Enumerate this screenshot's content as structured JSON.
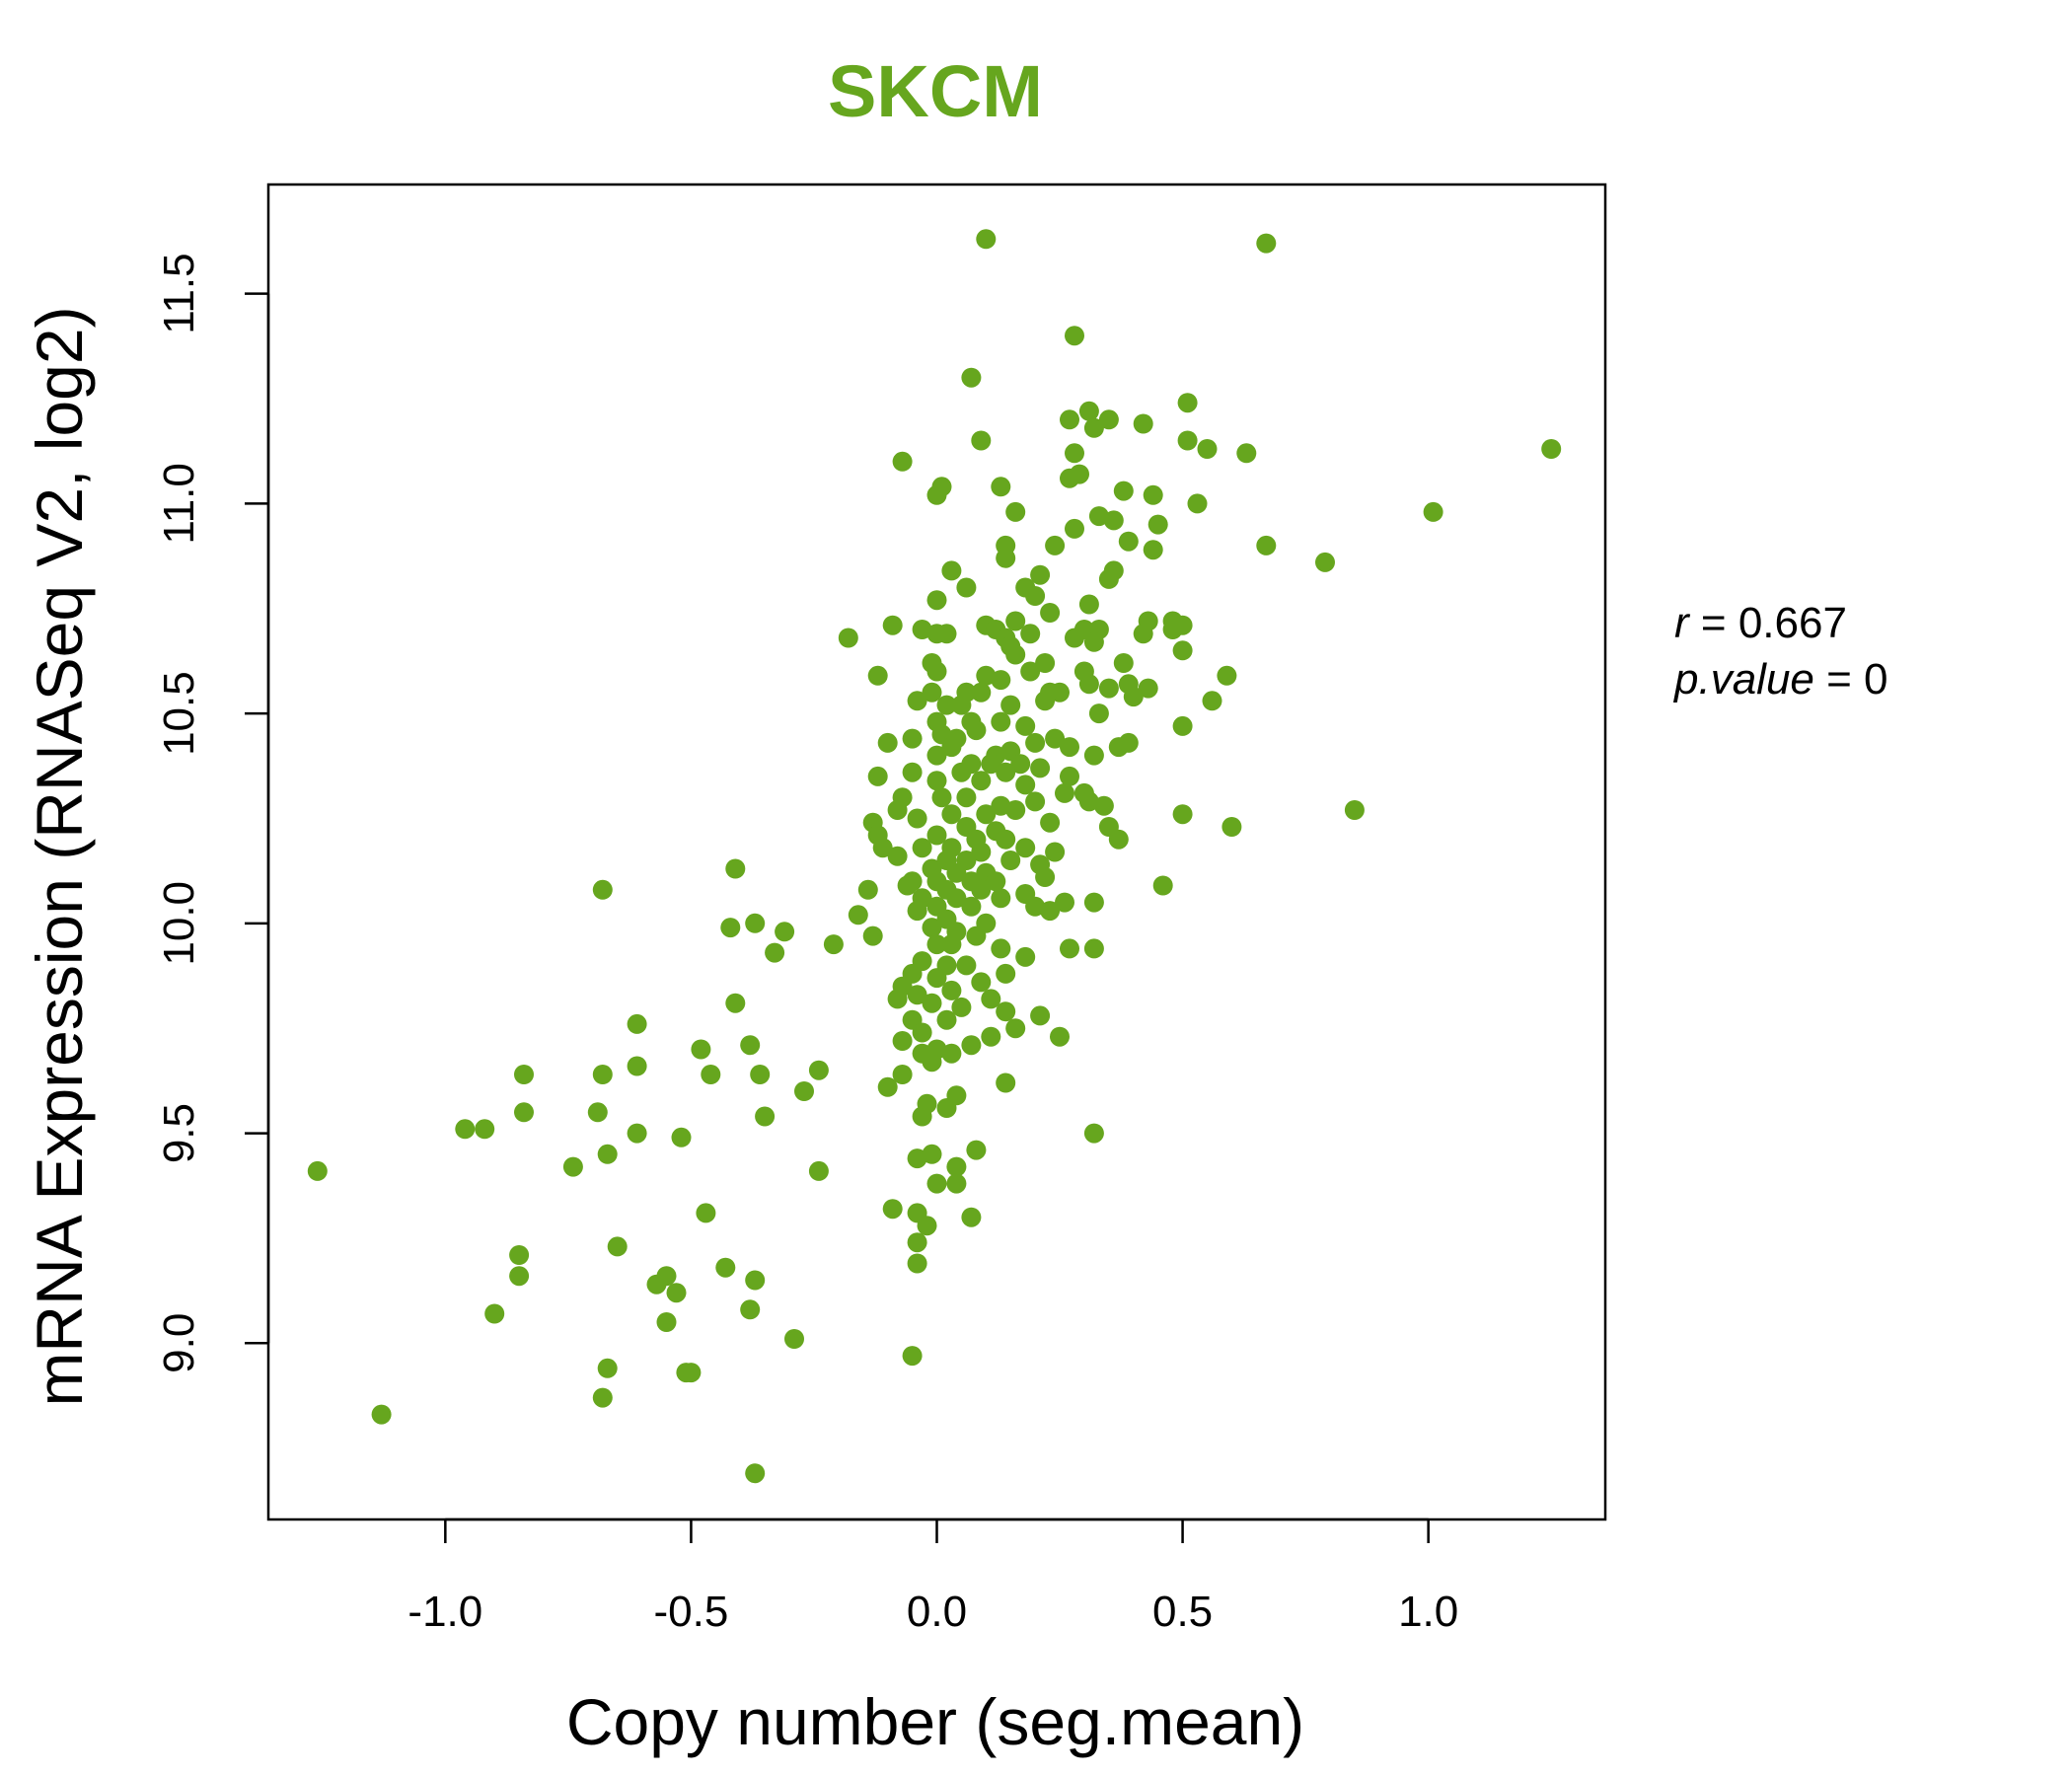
{
  "chart_data": {
    "type": "scatter",
    "title": "SKCM",
    "xlabel": "Copy number (seg.mean)",
    "ylabel": "mRNA Expression (RNASeq V2, log2)",
    "xlim": [
      -1.36,
      1.36
    ],
    "ylim": [
      8.58,
      11.76
    ],
    "xticks": [
      -1.0,
      -0.5,
      0.0,
      0.5,
      1.0
    ],
    "xtick_labels": [
      "-1.0",
      "-0.5",
      "0.0",
      "0.5",
      "1.0"
    ],
    "yticks": [
      9.0,
      9.5,
      10.0,
      10.5,
      11.0,
      11.5
    ],
    "ytick_labels": [
      "9.0",
      "9.5",
      "10.0",
      "10.5",
      "11.0",
      "11.5"
    ],
    "grid": false,
    "point_color": "#66a61e",
    "title_color": "#66a61e",
    "stats": {
      "r_label": "r",
      "r_value": "0.667",
      "p_label": "p.value",
      "p_value": "0"
    },
    "points": [
      [
        0.1,
        11.63
      ],
      [
        0.67,
        11.62
      ],
      [
        0.28,
        11.4
      ],
      [
        0.07,
        11.3
      ],
      [
        0.51,
        11.24
      ],
      [
        0.31,
        11.22
      ],
      [
        0.27,
        11.2
      ],
      [
        0.35,
        11.2
      ],
      [
        0.32,
        11.18
      ],
      [
        0.42,
        11.19
      ],
      [
        0.09,
        11.15
      ],
      [
        0.51,
        11.15
      ],
      [
        0.55,
        11.13
      ],
      [
        0.63,
        11.12
      ],
      [
        1.25,
        11.13
      ],
      [
        0.28,
        11.12
      ],
      [
        -0.07,
        11.1
      ],
      [
        0.27,
        11.06
      ],
      [
        0.29,
        11.07
      ],
      [
        0.01,
        11.04
      ],
      [
        0.0,
        11.02
      ],
      [
        0.13,
        11.04
      ],
      [
        0.38,
        11.03
      ],
      [
        0.44,
        11.02
      ],
      [
        0.53,
        11.0
      ],
      [
        0.16,
        10.98
      ],
      [
        0.33,
        10.97
      ],
      [
        0.36,
        10.96
      ],
      [
        0.45,
        10.95
      ],
      [
        1.01,
        10.98
      ],
      [
        0.28,
        10.94
      ],
      [
        0.14,
        10.9
      ],
      [
        0.24,
        10.9
      ],
      [
        0.39,
        10.91
      ],
      [
        0.67,
        10.9
      ],
      [
        0.44,
        10.89
      ],
      [
        0.14,
        10.87
      ],
      [
        0.79,
        10.86
      ],
      [
        0.03,
        10.84
      ],
      [
        0.36,
        10.84
      ],
      [
        0.21,
        10.83
      ],
      [
        0.35,
        10.82
      ],
      [
        0.06,
        10.8
      ],
      [
        0.18,
        10.8
      ],
      [
        0.2,
        10.78
      ],
      [
        0.0,
        10.77
      ],
      [
        0.31,
        10.76
      ],
      [
        0.23,
        10.74
      ],
      [
        0.43,
        10.72
      ],
      [
        0.48,
        10.72
      ],
      [
        0.5,
        10.71
      ],
      [
        0.1,
        10.71
      ],
      [
        0.16,
        10.72
      ],
      [
        -0.09,
        10.71
      ],
      [
        -0.03,
        10.7
      ],
      [
        0.0,
        10.69
      ],
      [
        0.02,
        10.69
      ],
      [
        0.12,
        10.7
      ],
      [
        0.14,
        10.68
      ],
      [
        0.19,
        10.69
      ],
      [
        0.3,
        10.7
      ],
      [
        0.33,
        10.7
      ],
      [
        0.42,
        10.69
      ],
      [
        0.48,
        10.7
      ],
      [
        -0.18,
        10.68
      ],
      [
        0.15,
        10.66
      ],
      [
        0.28,
        10.68
      ],
      [
        0.32,
        10.67
      ],
      [
        0.16,
        10.64
      ],
      [
        0.22,
        10.62
      ],
      [
        0.38,
        10.62
      ],
      [
        0.5,
        10.65
      ],
      [
        -0.01,
        10.62
      ],
      [
        0.0,
        10.6
      ],
      [
        -0.12,
        10.59
      ],
      [
        0.1,
        10.59
      ],
      [
        0.13,
        10.58
      ],
      [
        0.19,
        10.6
      ],
      [
        0.3,
        10.6
      ],
      [
        0.39,
        10.57
      ],
      [
        0.59,
        10.59
      ],
      [
        0.06,
        10.55
      ],
      [
        0.09,
        10.55
      ],
      [
        0.23,
        10.55
      ],
      [
        0.25,
        10.55
      ],
      [
        0.31,
        10.57
      ],
      [
        0.35,
        10.56
      ],
      [
        0.43,
        10.56
      ],
      [
        0.4,
        10.54
      ],
      [
        0.56,
        10.53
      ],
      [
        -0.04,
        10.53
      ],
      [
        -0.01,
        10.55
      ],
      [
        0.02,
        10.52
      ],
      [
        0.05,
        10.52
      ],
      [
        0.15,
        10.52
      ],
      [
        0.22,
        10.53
      ],
      [
        0.33,
        10.5
      ],
      [
        0.0,
        10.48
      ],
      [
        0.07,
        10.48
      ],
      [
        0.13,
        10.48
      ],
      [
        0.18,
        10.47
      ],
      [
        0.5,
        10.47
      ],
      [
        -0.05,
        10.44
      ],
      [
        0.01,
        10.45
      ],
      [
        0.04,
        10.44
      ],
      [
        0.08,
        10.46
      ],
      [
        0.24,
        10.44
      ],
      [
        0.2,
        10.43
      ],
      [
        0.37,
        10.42
      ],
      [
        0.39,
        10.43
      ],
      [
        0.27,
        10.42
      ],
      [
        -0.1,
        10.43
      ],
      [
        0.03,
        10.42
      ],
      [
        0.12,
        10.4
      ],
      [
        0.15,
        10.41
      ],
      [
        0.32,
        10.4
      ],
      [
        0.0,
        10.4
      ],
      [
        0.07,
        10.38
      ],
      [
        0.11,
        10.38
      ],
      [
        0.17,
        10.38
      ],
      [
        0.05,
        10.36
      ],
      [
        0.14,
        10.36
      ],
      [
        0.21,
        10.37
      ],
      [
        0.27,
        10.35
      ],
      [
        -0.05,
        10.36
      ],
      [
        -0.12,
        10.35
      ],
      [
        0.0,
        10.34
      ],
      [
        0.09,
        10.34
      ],
      [
        0.18,
        10.33
      ],
      [
        0.26,
        10.31
      ],
      [
        0.3,
        10.31
      ],
      [
        -0.07,
        10.3
      ],
      [
        0.01,
        10.3
      ],
      [
        0.06,
        10.3
      ],
      [
        0.13,
        10.28
      ],
      [
        0.2,
        10.29
      ],
      [
        0.31,
        10.29
      ],
      [
        0.34,
        10.28
      ],
      [
        0.5,
        10.26
      ],
      [
        0.85,
        10.27
      ],
      [
        -0.08,
        10.27
      ],
      [
        0.03,
        10.26
      ],
      [
        0.1,
        10.26
      ],
      [
        0.16,
        10.27
      ],
      [
        -0.13,
        10.24
      ],
      [
        -0.04,
        10.25
      ],
      [
        0.06,
        10.23
      ],
      [
        0.12,
        10.22
      ],
      [
        0.23,
        10.24
      ],
      [
        0.35,
        10.23
      ],
      [
        0.6,
        10.23
      ],
      [
        -0.12,
        10.21
      ],
      [
        0.0,
        10.21
      ],
      [
        0.08,
        10.2
      ],
      [
        0.14,
        10.2
      ],
      [
        0.37,
        10.2
      ],
      [
        -0.11,
        10.18
      ],
      [
        -0.03,
        10.18
      ],
      [
        0.03,
        10.18
      ],
      [
        0.09,
        10.17
      ],
      [
        0.18,
        10.18
      ],
      [
        0.24,
        10.17
      ],
      [
        -0.08,
        10.16
      ],
      [
        0.02,
        10.15
      ],
      [
        0.06,
        10.15
      ],
      [
        0.15,
        10.15
      ],
      [
        0.21,
        10.14
      ],
      [
        -0.01,
        10.13
      ],
      [
        0.1,
        10.12
      ],
      [
        0.04,
        10.12
      ],
      [
        -0.05,
        10.1
      ],
      [
        0.0,
        10.1
      ],
      [
        0.07,
        10.1
      ],
      [
        0.12,
        10.1
      ],
      [
        0.22,
        10.11
      ],
      [
        0.46,
        10.09
      ],
      [
        -0.06,
        10.09
      ],
      [
        0.02,
        10.08
      ],
      [
        0.09,
        10.08
      ],
      [
        -0.14,
        10.08
      ],
      [
        0.18,
        10.07
      ],
      [
        -0.03,
        10.06
      ],
      [
        0.04,
        10.06
      ],
      [
        0.13,
        10.06
      ],
      [
        0.26,
        10.05
      ],
      [
        0.32,
        10.05
      ],
      [
        0.0,
        10.04
      ],
      [
        0.07,
        10.04
      ],
      [
        0.2,
        10.04
      ],
      [
        0.23,
        10.03
      ],
      [
        -0.04,
        10.03
      ],
      [
        0.02,
        10.01
      ],
      [
        0.1,
        10.0
      ],
      [
        -0.16,
        10.02
      ],
      [
        -0.01,
        9.99
      ],
      [
        0.04,
        9.98
      ],
      [
        -0.13,
        9.97
      ],
      [
        0.08,
        9.97
      ],
      [
        0.0,
        9.95
      ],
      [
        0.03,
        9.95
      ],
      [
        -0.21,
        9.95
      ],
      [
        0.13,
        9.94
      ],
      [
        0.27,
        9.94
      ],
      [
        0.32,
        9.94
      ],
      [
        0.18,
        9.92
      ],
      [
        -0.03,
        9.91
      ],
      [
        0.02,
        9.9
      ],
      [
        0.06,
        9.9
      ],
      [
        -0.05,
        9.88
      ],
      [
        0.14,
        9.88
      ],
      [
        0.0,
        9.87
      ],
      [
        0.09,
        9.86
      ],
      [
        -0.07,
        9.85
      ],
      [
        0.03,
        9.84
      ],
      [
        -0.04,
        9.83
      ],
      [
        0.11,
        9.82
      ],
      [
        -0.08,
        9.82
      ],
      [
        -0.01,
        9.81
      ],
      [
        0.05,
        9.8
      ],
      [
        0.14,
        9.79
      ],
      [
        0.21,
        9.78
      ],
      [
        -0.05,
        9.77
      ],
      [
        0.02,
        9.77
      ],
      [
        0.16,
        9.75
      ],
      [
        -0.03,
        9.74
      ],
      [
        0.11,
        9.73
      ],
      [
        0.25,
        9.73
      ],
      [
        -0.07,
        9.72
      ],
      [
        0.07,
        9.71
      ],
      [
        0.0,
        9.7
      ],
      [
        -0.03,
        9.69
      ],
      [
        0.03,
        9.69
      ],
      [
        -0.01,
        9.67
      ],
      [
        -0.07,
        9.64
      ],
      [
        -0.1,
        9.61
      ],
      [
        0.14,
        9.62
      ],
      [
        0.04,
        9.59
      ],
      [
        -0.02,
        9.57
      ],
      [
        0.02,
        9.56
      ],
      [
        -0.03,
        9.54
      ],
      [
        0.32,
        9.5
      ],
      [
        0.08,
        9.46
      ],
      [
        -0.04,
        9.44
      ],
      [
        -0.01,
        9.45
      ],
      [
        0.04,
        9.42
      ],
      [
        0.04,
        9.38
      ],
      [
        0.0,
        9.38
      ],
      [
        -0.09,
        9.32
      ],
      [
        -0.04,
        9.31
      ],
      [
        0.07,
        9.3
      ],
      [
        -0.02,
        9.28
      ],
      [
        -0.04,
        9.24
      ],
      [
        -0.04,
        9.19
      ],
      [
        -0.05,
        8.97
      ],
      [
        -0.68,
        10.08
      ],
      [
        -0.41,
        10.13
      ],
      [
        -0.37,
        10.0
      ],
      [
        -0.42,
        9.99
      ],
      [
        -0.31,
        9.98
      ],
      [
        -0.33,
        9.93
      ],
      [
        -0.41,
        9.81
      ],
      [
        -0.61,
        9.76
      ],
      [
        -0.48,
        9.7
      ],
      [
        -0.38,
        9.71
      ],
      [
        -0.84,
        9.64
      ],
      [
        -0.68,
        9.64
      ],
      [
        -0.61,
        9.66
      ],
      [
        -0.46,
        9.64
      ],
      [
        -0.36,
        9.64
      ],
      [
        -0.24,
        9.65
      ],
      [
        -0.27,
        9.6
      ],
      [
        -0.84,
        9.55
      ],
      [
        -0.69,
        9.55
      ],
      [
        -0.35,
        9.54
      ],
      [
        -0.96,
        9.51
      ],
      [
        -0.92,
        9.51
      ],
      [
        -0.61,
        9.5
      ],
      [
        -0.52,
        9.49
      ],
      [
        -0.67,
        9.45
      ],
      [
        -1.26,
        9.41
      ],
      [
        -0.74,
        9.42
      ],
      [
        -0.24,
        9.41
      ],
      [
        -0.47,
        9.31
      ],
      [
        -0.65,
        9.23
      ],
      [
        -0.85,
        9.21
      ],
      [
        -0.43,
        9.18
      ],
      [
        -0.85,
        9.16
      ],
      [
        -0.55,
        9.16
      ],
      [
        -0.57,
        9.14
      ],
      [
        -0.53,
        9.12
      ],
      [
        -0.37,
        9.15
      ],
      [
        -0.9,
        9.07
      ],
      [
        -0.38,
        9.08
      ],
      [
        -0.55,
        9.05
      ],
      [
        -0.29,
        9.01
      ],
      [
        -0.67,
        8.94
      ],
      [
        -0.51,
        8.93
      ],
      [
        -0.5,
        8.93
      ],
      [
        -0.68,
        8.87
      ],
      [
        -1.13,
        8.83
      ],
      [
        -0.37,
        8.69
      ]
    ]
  }
}
